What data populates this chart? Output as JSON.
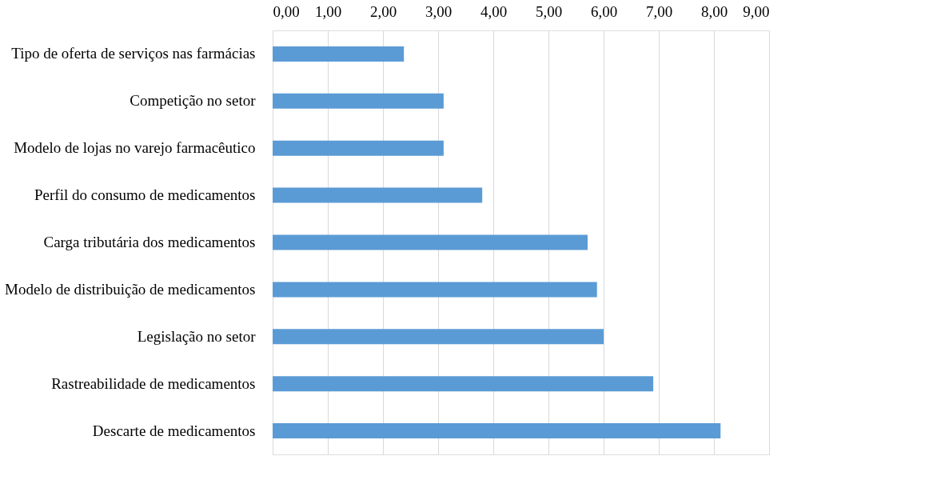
{
  "chart_data": {
    "type": "bar",
    "orientation": "horizontal",
    "categories": [
      "Tipo de oferta de serviços nas farmácias",
      "Competição no setor",
      "Modelo de lojas no varejo farmacêutico",
      "Perfil do consumo de medicamentos",
      "Carga tributária dos medicamentos",
      "Modelo de distribuição de medicamentos",
      "Legislação no setor",
      "Rastreabilidade de medicamentos",
      "Descarte de medicamentos"
    ],
    "values": [
      2.38,
      3.1,
      3.1,
      3.8,
      5.71,
      5.88,
      6.0,
      6.9,
      8.12
    ],
    "color": "#5b9bd5",
    "xlim": [
      0,
      9
    ],
    "xticks": [
      {
        "value": 0,
        "label": "0,00"
      },
      {
        "value": 1,
        "label": "1,00"
      },
      {
        "value": 2,
        "label": "2,00"
      },
      {
        "value": 3,
        "label": "3,00"
      },
      {
        "value": 4,
        "label": "4,00"
      },
      {
        "value": 5,
        "label": "5,00"
      },
      {
        "value": 6,
        "label": "6,00"
      },
      {
        "value": 7,
        "label": "7,00"
      },
      {
        "value": 8,
        "label": "8,00"
      },
      {
        "value": 9,
        "label": "9,00"
      }
    ],
    "grid": "x"
  }
}
